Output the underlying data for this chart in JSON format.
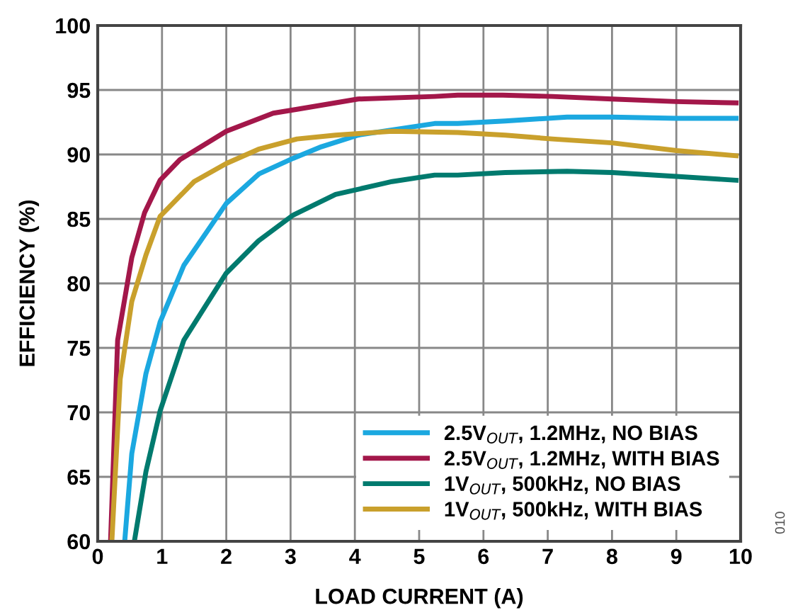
{
  "chart_data": {
    "type": "line",
    "xlabel": "LOAD CURRENT (A)",
    "ylabel": "EFFICIENCY (%)",
    "xlim": [
      0,
      10
    ],
    "ylim": [
      60,
      100
    ],
    "xticks": [
      0,
      1,
      2,
      3,
      4,
      5,
      6,
      7,
      8,
      9,
      10
    ],
    "yticks": [
      60,
      65,
      70,
      75,
      80,
      85,
      90,
      95,
      100
    ],
    "grid": true,
    "legend": "bottom right",
    "line_style": "solid",
    "marker": "none",
    "annotations": [
      "010"
    ],
    "series": [
      {
        "name": "2.5V$_{OUT}$, 1.2MHz, NO BIAS",
        "color": "#1ba8e0",
        "x": [
          0.42,
          0.53,
          0.75,
          0.97,
          1.34,
          2.0,
          2.51,
          3.04,
          3.48,
          4.05,
          5.24,
          5.6,
          6.34,
          7.3,
          8.0,
          9.0,
          9.93
        ],
        "values": [
          60,
          66.8,
          73,
          77,
          81.4,
          86.2,
          88.5,
          89.7,
          90.6,
          91.5,
          92.4,
          92.4,
          92.6,
          92.9,
          92.9,
          92.8,
          92.8
        ]
      },
      {
        "name": "2.5V$_{OUT}$, 1.2MHz, WITH BIAS",
        "color": "#a3174a",
        "x": [
          0.2,
          0.31,
          0.53,
          0.73,
          0.97,
          1.28,
          2.0,
          2.73,
          3.1,
          4.05,
          5.24,
          5.6,
          6.3,
          7.07,
          8.0,
          9.0,
          9.93
        ],
        "values": [
          60,
          75.6,
          82,
          85.5,
          88,
          89.6,
          91.8,
          93.2,
          93.5,
          94.3,
          94.5,
          94.6,
          94.6,
          94.5,
          94.3,
          94.1,
          94.0
        ]
      },
      {
        "name": "1V$_{OUT}$, 500kHz, NO BIAS",
        "color": "#007a6e",
        "x": [
          0.57,
          0.75,
          0.97,
          1.34,
          2.0,
          2.5,
          3.04,
          3.7,
          4.58,
          5.24,
          5.6,
          6.34,
          7.3,
          8.0,
          9.0,
          9.93
        ],
        "values": [
          60,
          65.4,
          70.1,
          75.6,
          80.8,
          83.3,
          85.3,
          86.9,
          87.9,
          88.4,
          88.4,
          88.6,
          88.7,
          88.6,
          88.3,
          88.0
        ]
      },
      {
        "name": "1V$_{OUT}$, 500kHz, WITH BIAS",
        "color": "#c9a02c",
        "x": [
          0.22,
          0.35,
          0.53,
          0.75,
          0.97,
          1.5,
          2.0,
          2.5,
          3.1,
          3.7,
          4.58,
          5.6,
          6.34,
          7.07,
          8.0,
          9.0,
          9.93
        ],
        "values": [
          60,
          72.6,
          78.6,
          82.2,
          85.2,
          87.9,
          89.3,
          90.4,
          91.2,
          91.5,
          91.8,
          91.7,
          91.5,
          91.2,
          90.9,
          90.3,
          89.9
        ]
      }
    ]
  }
}
